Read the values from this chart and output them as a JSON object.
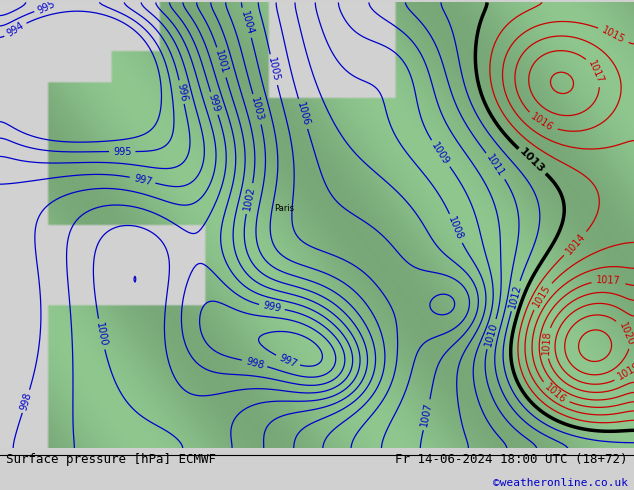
{
  "title_left": "Surface pressure [hPa] ECMWF",
  "title_right": "Fr 14-06-2024 18:00 UTC (18+72)",
  "credit": "©weatheronline.co.uk",
  "bg_color": "#d0d0d0",
  "land_color": [
    0.56,
    0.78,
    0.56
  ],
  "sea_color": [
    0.82,
    0.82,
    0.82
  ],
  "contour_blue": "#0000cc",
  "contour_red": "#cc0000",
  "contour_black": "#000000",
  "label_fontsize": 7,
  "title_fontsize": 9,
  "credit_fontsize": 8,
  "credit_color": "#0000cc"
}
